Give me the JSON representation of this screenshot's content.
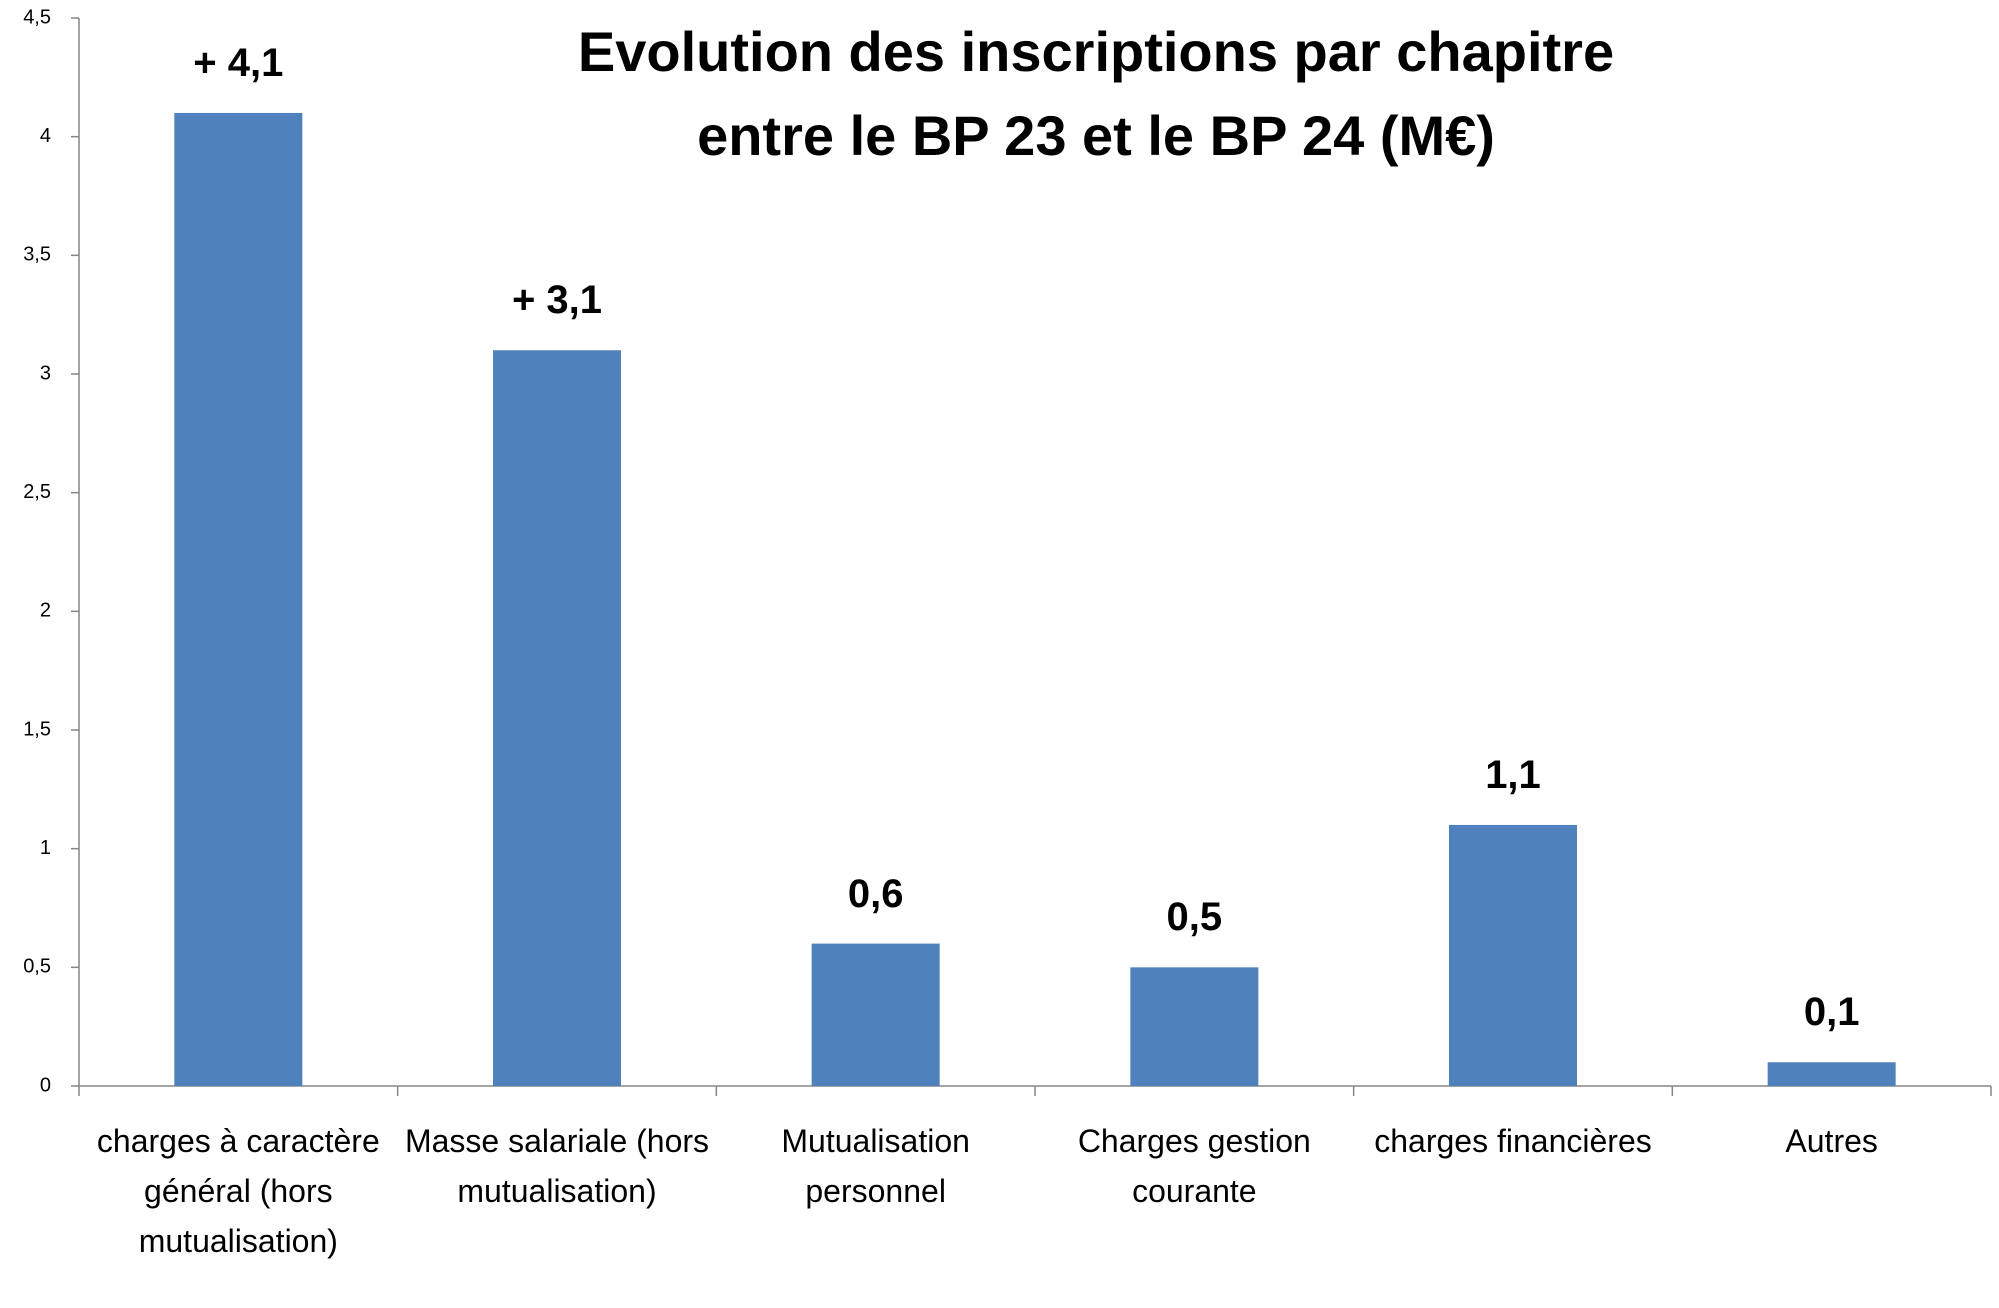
{
  "chart_data": {
    "type": "bar",
    "title": "Evolution des inscriptions par chapitre entre le BP 23 et le BP 24 (M€)",
    "categories": [
      "charges à caractère général (hors mutualisation)",
      "Masse salariale (hors mutualisation)",
      "Mutualisation personnel",
      "Charges gestion courante",
      "charges financières",
      "Autres"
    ],
    "values": [
      4.1,
      3.1,
      0.6,
      0.5,
      1.1,
      0.1
    ],
    "value_labels": [
      "+ 4,1",
      "+ 3,1",
      "0,6",
      "0,5",
      "1,1",
      "0,1"
    ],
    "color": "#4f81bd",
    "ylim": [
      0,
      4.5
    ],
    "yticks": [
      0,
      {
        "value": 0.5,
        "label": "0,5"
      },
      1,
      {
        "value": 1.5,
        "label": "1,5"
      },
      2,
      {
        "value": 2.5,
        "label": "2,5"
      },
      3,
      {
        "value": 3.5,
        "label": "3,5"
      },
      4,
      {
        "value": 4.5,
        "label": "4,5"
      }
    ],
    "grid": false
  }
}
